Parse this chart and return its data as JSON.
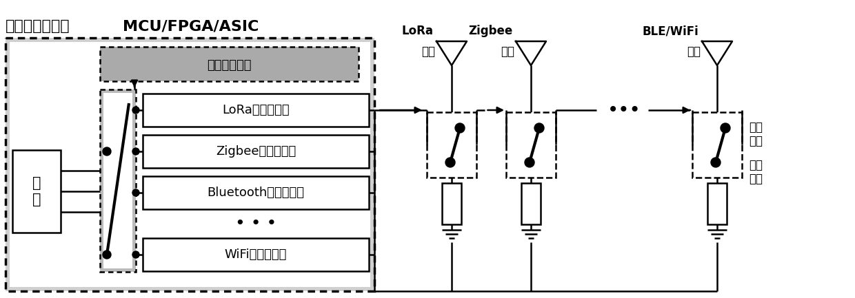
{
  "bg_color": "#ffffff",
  "title_cn": "数字基带处理器",
  "title_en": "MCU/FPGA/ASIC",
  "mux_label": "通信模式选择",
  "data_label": "数\n据",
  "modules": [
    "LoRa基带、调制",
    "Zigbee基带、调制",
    "Bluetooth基带、调制",
    "WiFi基带、调制"
  ],
  "antenna_names": [
    "LoRa",
    "Zigbee",
    "BLE/WiFi"
  ],
  "antenna_label": "天线",
  "rf_switch_label": "射频\n开关",
  "match_label": "匹配\n阻抗",
  "dots_label": "•••"
}
